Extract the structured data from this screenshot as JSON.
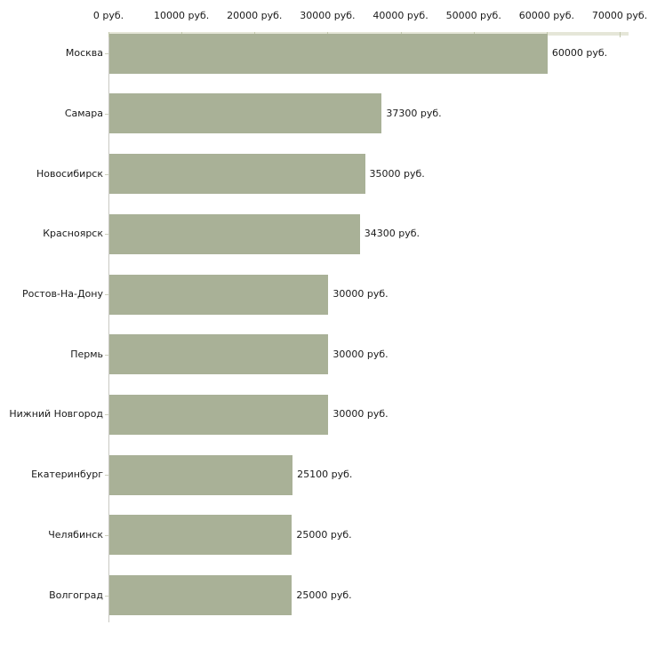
{
  "chart_data": {
    "type": "bar",
    "orientation": "horizontal",
    "categories": [
      "Москва",
      "Самара",
      "Новосибирск",
      "Красноярск",
      "Ростов-На-Дону",
      "Пермь",
      "Нижний Новгород",
      "Екатеринбург",
      "Челябинск",
      "Волгоград"
    ],
    "values": [
      60000,
      37300,
      35000,
      34300,
      30000,
      30000,
      30000,
      25100,
      25000,
      25000
    ],
    "value_labels": [
      "60000 руб.",
      "37300 руб.",
      "35000 руб.",
      "34300 руб.",
      "30000 руб.",
      "30000 руб.",
      "30000 руб.",
      "25100 руб.",
      "25000 руб.",
      "25000 руб."
    ],
    "xlim": [
      0,
      70000
    ],
    "x_ticks": [
      0,
      10000,
      20000,
      30000,
      40000,
      50000,
      60000,
      70000
    ],
    "x_tick_labels": [
      "0 руб.",
      "10000 руб.",
      "20000 руб.",
      "30000 руб.",
      "40000 руб.",
      "50000 руб.",
      "60000 руб.",
      "70000 руб."
    ],
    "grid": false,
    "legend": false,
    "axis_position": "top",
    "colors": {
      "bar": "#a9b197",
      "axis_band": "#e5e6d8",
      "x_tick": "#c3c8ac",
      "y_axis": "#c9c9c3",
      "y_tick": "#cdd0bc",
      "text": "#1a1a1a",
      "background": "#ffffff"
    }
  }
}
